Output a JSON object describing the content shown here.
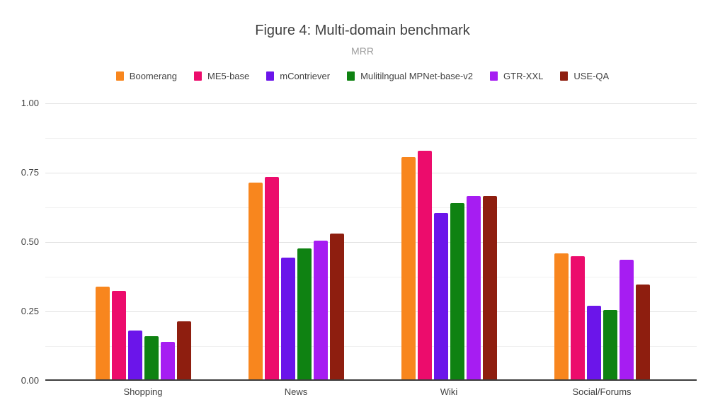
{
  "chart_data": {
    "type": "bar",
    "title": "Figure 4: Multi-domain benchmark",
    "subtitle": "MRR",
    "xlabel": "",
    "ylabel": "",
    "legend_position": "top",
    "grid": "on",
    "categories": [
      "Shopping",
      "News",
      "Wiki",
      "Social/Forums"
    ],
    "series": [
      {
        "name": "Boomerang",
        "color": "#F8861E",
        "values": [
          0.34,
          0.715,
          0.805,
          0.46
        ]
      },
      {
        "name": "ME5-base",
        "color": "#EC0C6C",
        "values": [
          0.325,
          0.735,
          0.83,
          0.45
        ]
      },
      {
        "name": "mContriever",
        "color": "#6B15EA",
        "values": [
          0.18,
          0.445,
          0.605,
          0.27
        ]
      },
      {
        "name": "Mulitilngual MPNet-base-v2",
        "color": "#0F8212",
        "values": [
          0.16,
          0.477,
          0.64,
          0.255
        ]
      },
      {
        "name": "GTR-XXL",
        "color": "#A61DF2",
        "values": [
          0.14,
          0.505,
          0.667,
          0.437
        ]
      },
      {
        "name": "USE-QA",
        "color": "#8E1E0F",
        "values": [
          0.215,
          0.53,
          0.667,
          0.348
        ]
      }
    ],
    "y_axis": {
      "min": 0,
      "max": 1,
      "major_ticks": [
        {
          "value": 0,
          "label": "0.00"
        },
        {
          "value": 0.25,
          "label": "0.25"
        },
        {
          "value": 0.5,
          "label": "0.50"
        },
        {
          "value": 0.75,
          "label": "0.75"
        },
        {
          "value": 1,
          "label": "1.00"
        }
      ],
      "minor_step": 0.125
    }
  },
  "theme": {
    "title_color": "#404040",
    "subtitle_color": "#9e9e9e",
    "axis_label_color": "#424242",
    "grid_major_color": "#e2e2e2",
    "grid_minor_color": "#f0f0f0",
    "baseline_color": "#3c3c3c",
    "background_color": "#ffffff"
  }
}
